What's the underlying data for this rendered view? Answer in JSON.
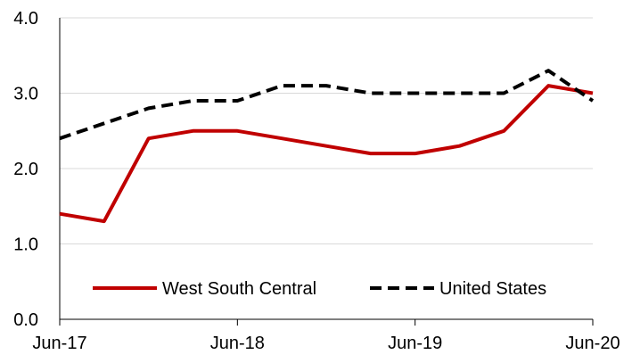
{
  "chart_data": {
    "type": "line",
    "title": "",
    "xlabel": "",
    "ylabel": "",
    "x": [
      "Jun-17",
      "Sep-17",
      "Dec-17",
      "Mar-18",
      "Jun-18",
      "Sep-18",
      "Dec-18",
      "Mar-19",
      "Jun-19",
      "Sep-19",
      "Dec-19",
      "Mar-20",
      "Jun-20"
    ],
    "x_tick_labels": [
      "Jun-17",
      "Jun-18",
      "Jun-19",
      "Jun-20"
    ],
    "y_tick_labels": [
      "0.0",
      "1.0",
      "2.0",
      "3.0",
      "4.0"
    ],
    "ylim": [
      0,
      4
    ],
    "y_ticks": [
      0,
      1,
      2,
      3,
      4
    ],
    "grid": "horizontal",
    "legend_position": "bottom-inside",
    "series": [
      {
        "name": "West South Central",
        "color": "#c00000",
        "style": "solid",
        "values": [
          1.4,
          1.3,
          2.4,
          2.5,
          2.5,
          2.4,
          2.3,
          2.2,
          2.2,
          2.3,
          2.5,
          3.1,
          3.0
        ]
      },
      {
        "name": "United States",
        "color": "#000000",
        "style": "dashed",
        "values": [
          2.4,
          2.6,
          2.8,
          2.9,
          2.9,
          3.1,
          3.1,
          3.0,
          3.0,
          3.0,
          3.0,
          3.3,
          2.9
        ]
      }
    ]
  }
}
